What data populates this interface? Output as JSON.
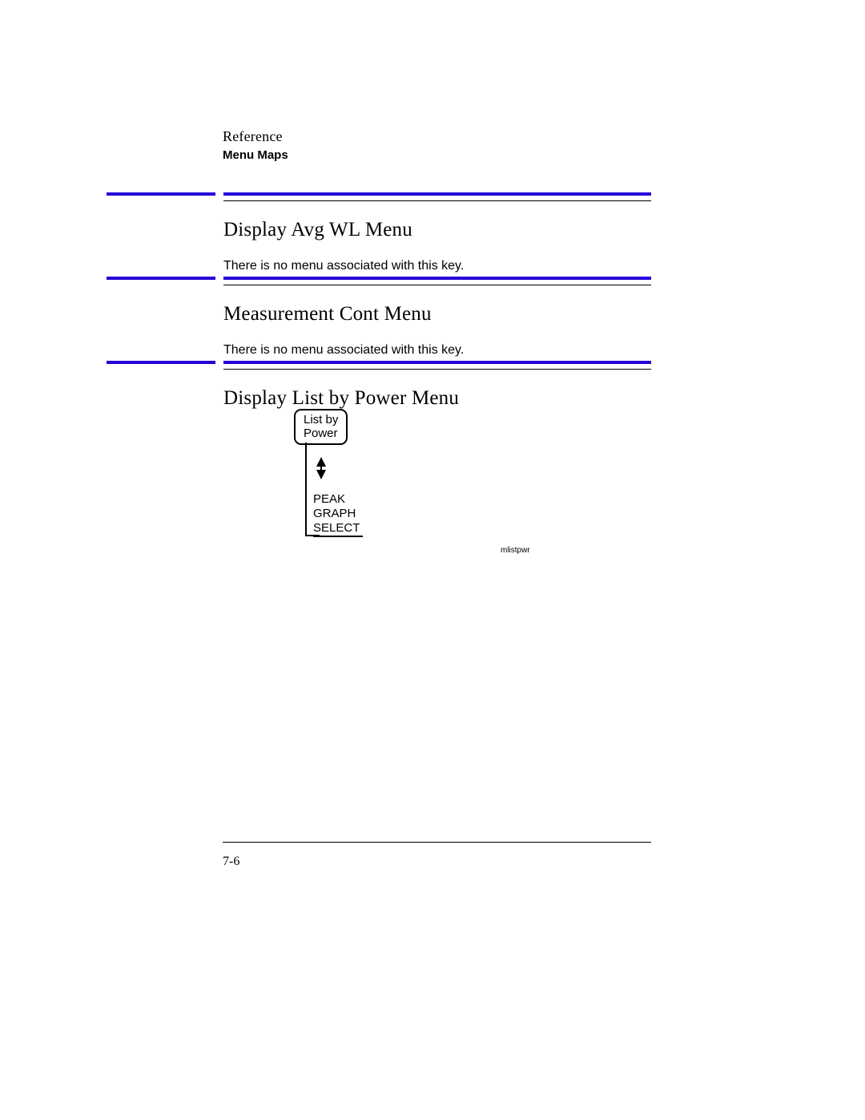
{
  "header": {
    "reference": "Reference",
    "subtitle": "Menu Maps"
  },
  "colors": {
    "accent": "#2400d8",
    "text": "#000000",
    "background": "#ffffff"
  },
  "sections": [
    {
      "title": "Display Avg WL Menu",
      "body": "There is no menu associated with this key."
    },
    {
      "title": "Measurement Cont Menu",
      "body": "There is no menu associated with this key."
    },
    {
      "title": "Display List by Power Menu",
      "body": ""
    }
  ],
  "diagram": {
    "type": "tree",
    "root_label_line1": "List by",
    "root_label_line2": "Power",
    "leaf_line1": "PEAK",
    "leaf_line2": "GRAPH",
    "leaf_line3": "SELECT",
    "tag": "mlistpwr"
  },
  "footer": {
    "page_number": "7-6"
  }
}
